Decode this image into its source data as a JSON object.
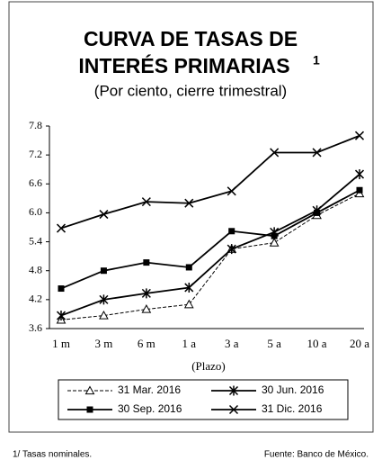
{
  "chart_data": {
    "type": "line",
    "title": [
      "CURVA DE TASAS DE",
      "INTERÉS PRIMARIAS"
    ],
    "title_note": "1",
    "subtitle": "(Por ciento, cierre trimestral)",
    "x_label": "(Plazo)",
    "categories": [
      "1 m",
      "3 m",
      "6 m",
      "1 a",
      "3 a",
      "5 a",
      "10 a",
      "20 a"
    ],
    "ylim": [
      3.6,
      7.8
    ],
    "yticks": [
      3.6,
      4.2,
      4.8,
      5.4,
      {
        "value": 6,
        "label": "6.0"
      },
      6.6,
      7.2,
      7.8
    ],
    "series": [
      {
        "name": "31 Mar. 2016",
        "color": "#000000",
        "marker": "triangle",
        "dashed": true,
        "values": [
          3.78,
          3.87,
          4.0,
          4.1,
          5.25,
          5.38,
          5.95,
          6.4
        ]
      },
      {
        "name": "30 Jun. 2016",
        "color": "#000000",
        "marker": "star",
        "dashed": false,
        "values": [
          3.87,
          4.2,
          4.33,
          4.45,
          5.25,
          5.6,
          6.05,
          6.8
        ]
      },
      {
        "name": "30 Sep. 2016",
        "color": "#000000",
        "marker": "square",
        "dashed": false,
        "values": [
          4.43,
          4.8,
          4.97,
          4.87,
          5.62,
          5.52,
          6.0,
          6.47
        ]
      },
      {
        "name": "31 Dic. 2016",
        "color": "#000000",
        "marker": "x",
        "dashed": false,
        "values": [
          5.68,
          5.97,
          6.23,
          6.2,
          6.45,
          7.25,
          7.25,
          7.6
        ]
      }
    ],
    "footnote": "1/ Tasas nominales.",
    "source": "Fuente:  Banco de México."
  }
}
